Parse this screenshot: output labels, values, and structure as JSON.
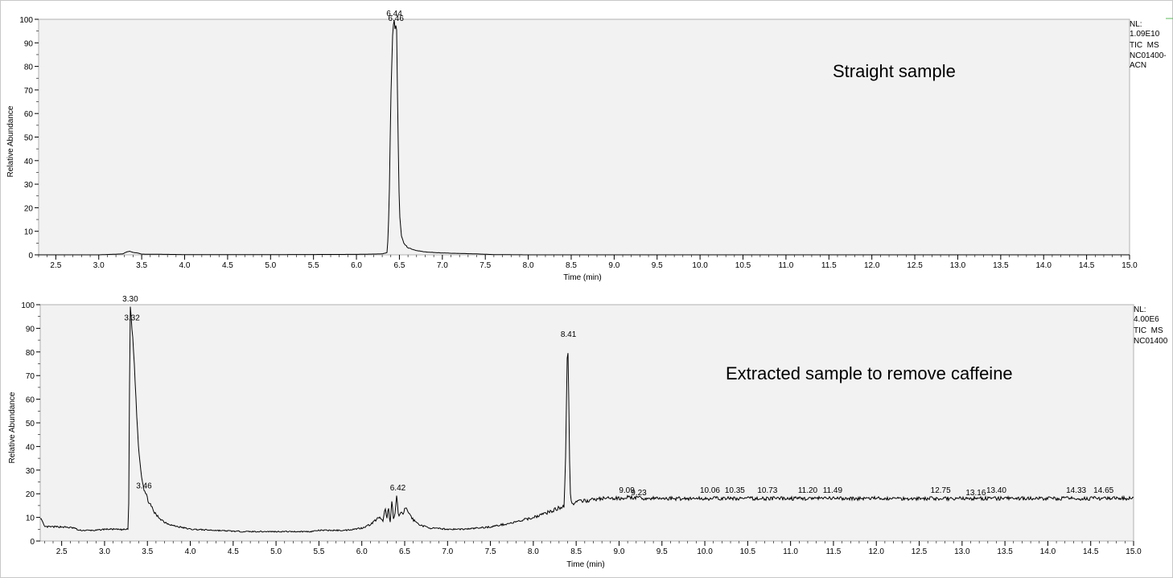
{
  "chart_data": [
    {
      "type": "line",
      "title": "",
      "annotation": "Straight sample",
      "xlabel": "Time (min)",
      "ylabel": "Relative Abundance",
      "xlim": [
        2.3,
        15.0
      ],
      "ylim": [
        0,
        100
      ],
      "x_ticks": [
        "2.5",
        "3.0",
        "3.5",
        "4.0",
        "4.5",
        "5.0",
        "5.5",
        "6.0",
        "6.5",
        "7.0",
        "7.5",
        "8.0",
        "8.5",
        "9.0",
        "9.5",
        "10.0",
        "10.5",
        "11.0",
        "11.5",
        "12.0",
        "12.5",
        "13.0",
        "13.5",
        "14.0",
        "14.5",
        "15.0"
      ],
      "y_ticks": [
        "0",
        "10",
        "20",
        "30",
        "40",
        "50",
        "60",
        "70",
        "80",
        "90",
        "100"
      ],
      "info_lines": [
        "NL:",
        "1.09E10",
        "TIC  MS",
        "NC01400-",
        "ACN"
      ],
      "peak_labels": [
        {
          "x": 6.44,
          "y": 100,
          "text": "6.44"
        },
        {
          "x": 6.46,
          "y": 98,
          "text": "6.46"
        }
      ],
      "series": [
        {
          "x": [
            2.3,
            3.0,
            3.28,
            3.32,
            3.36,
            3.4,
            3.45,
            3.5,
            3.8,
            4.0,
            5.0,
            6.0,
            6.3,
            6.36,
            6.38,
            6.4,
            6.42,
            6.43,
            6.44,
            6.45,
            6.46,
            6.47,
            6.48,
            6.5,
            6.52,
            6.55,
            6.6,
            6.7,
            6.8,
            7.0,
            7.2,
            7.4,
            7.6,
            8.0,
            10.0,
            12.0,
            15.0
          ],
          "y": [
            0,
            0,
            0.4,
            1.2,
            1.5,
            1.0,
            0.8,
            0.3,
            0.2,
            0.1,
            0.1,
            0.2,
            0.4,
            1.0,
            20,
            65,
            93,
            97,
            100,
            96,
            98,
            95,
            60,
            18,
            9,
            5,
            3,
            1.8,
            1.2,
            0.8,
            0.6,
            0.4,
            0.1,
            0,
            0,
            0,
            0
          ]
        }
      ]
    },
    {
      "type": "line",
      "title": "",
      "annotation": "Extracted sample to remove caffeine",
      "xlabel": "Time (min)",
      "ylabel": "Relative Abundance",
      "xlim": [
        2.25,
        15.0
      ],
      "ylim": [
        0,
        100
      ],
      "x_ticks": [
        "2.5",
        "3.0",
        "3.5",
        "4.0",
        "4.5",
        "5.0",
        "5.5",
        "6.0",
        "6.5",
        "7.0",
        "7.5",
        "8.0",
        "8.5",
        "9.0",
        "9.5",
        "10.0",
        "10.5",
        "11.0",
        "11.5",
        "12.0",
        "12.5",
        "13.0",
        "13.5",
        "14.0",
        "14.5",
        "15.0"
      ],
      "y_ticks": [
        "0",
        "10",
        "20",
        "30",
        "40",
        "50",
        "60",
        "70",
        "80",
        "90",
        "100"
      ],
      "info_lines": [
        "NL:",
        "4.00E6",
        "TIC  MS",
        "NC01400"
      ],
      "peak_labels": [
        {
          "x": 3.3,
          "y": 100,
          "text": "3.30"
        },
        {
          "x": 3.32,
          "y": 92,
          "text": "3.32"
        },
        {
          "x": 3.46,
          "y": 21,
          "text": "3.46"
        },
        {
          "x": 6.42,
          "y": 20,
          "text": "6.42"
        },
        {
          "x": 8.41,
          "y": 85,
          "text": "8.41"
        },
        {
          "x": 9.09,
          "y": 19,
          "text": "9.09"
        },
        {
          "x": 9.23,
          "y": 18,
          "text": "9.23"
        },
        {
          "x": 10.06,
          "y": 19,
          "text": "10.06"
        },
        {
          "x": 10.35,
          "y": 19,
          "text": "10.35"
        },
        {
          "x": 10.73,
          "y": 19,
          "text": "10.73"
        },
        {
          "x": 11.2,
          "y": 19,
          "text": "11.20"
        },
        {
          "x": 11.49,
          "y": 19,
          "text": "11.49"
        },
        {
          "x": 12.75,
          "y": 19,
          "text": "12.75"
        },
        {
          "x": 13.16,
          "y": 18,
          "text": "13.16"
        },
        {
          "x": 13.4,
          "y": 19,
          "text": "13.40"
        },
        {
          "x": 14.33,
          "y": 19,
          "text": "14.33"
        },
        {
          "x": 14.65,
          "y": 19,
          "text": "14.65"
        }
      ],
      "series": [
        {
          "x": [
            2.25,
            2.3,
            2.5,
            2.65,
            2.7,
            2.9,
            3.0,
            3.1,
            3.2,
            3.28,
            3.29,
            3.3,
            3.31,
            3.32,
            3.34,
            3.36,
            3.38,
            3.4,
            3.43,
            3.46,
            3.5,
            3.55,
            3.6,
            3.7,
            3.8,
            4.0,
            4.3,
            4.6,
            5.0,
            5.4,
            5.5,
            5.8,
            6.0,
            6.1,
            6.2,
            6.25,
            6.27,
            6.29,
            6.31,
            6.33,
            6.35,
            6.37,
            6.39,
            6.41,
            6.42,
            6.43,
            6.45,
            6.48,
            6.5,
            6.53,
            6.55,
            6.58,
            6.6,
            6.65,
            6.7,
            6.8,
            7.0,
            7.2,
            7.5,
            7.8,
            8.0,
            8.2,
            8.3,
            8.36,
            8.38,
            8.39,
            8.4,
            8.41,
            8.42,
            8.43,
            8.44,
            8.45,
            8.47,
            8.5,
            8.6,
            8.7,
            8.8,
            9.0,
            9.1,
            9.3,
            9.5,
            10.0,
            10.5,
            11.0,
            11.5,
            12.0,
            12.5,
            13.0,
            13.5,
            14.0,
            14.5,
            15.0
          ],
          "y": [
            10,
            6,
            6,
            5.5,
            4.5,
            4.5,
            5,
            5,
            4.8,
            5,
            60,
            100,
            95,
            90,
            80,
            65,
            50,
            38,
            28,
            22,
            18,
            14,
            11,
            8,
            6.5,
            5,
            4.5,
            4,
            4,
            4,
            4.5,
            4.5,
            5.5,
            7,
            10,
            8,
            15,
            9,
            14,
            8,
            17,
            9,
            12,
            20,
            13,
            10,
            12,
            11,
            14,
            13,
            12,
            10,
            9,
            7.5,
            6.5,
            5.5,
            5,
            5,
            6,
            8,
            10,
            12.5,
            14,
            15,
            40,
            70,
            85,
            72,
            40,
            22,
            17,
            15.5,
            16,
            16.5,
            17,
            17.5,
            18,
            18,
            18.5,
            18,
            18,
            18,
            18,
            18,
            18,
            18,
            18,
            18,
            18,
            18,
            18,
            18
          ]
        }
      ]
    }
  ]
}
